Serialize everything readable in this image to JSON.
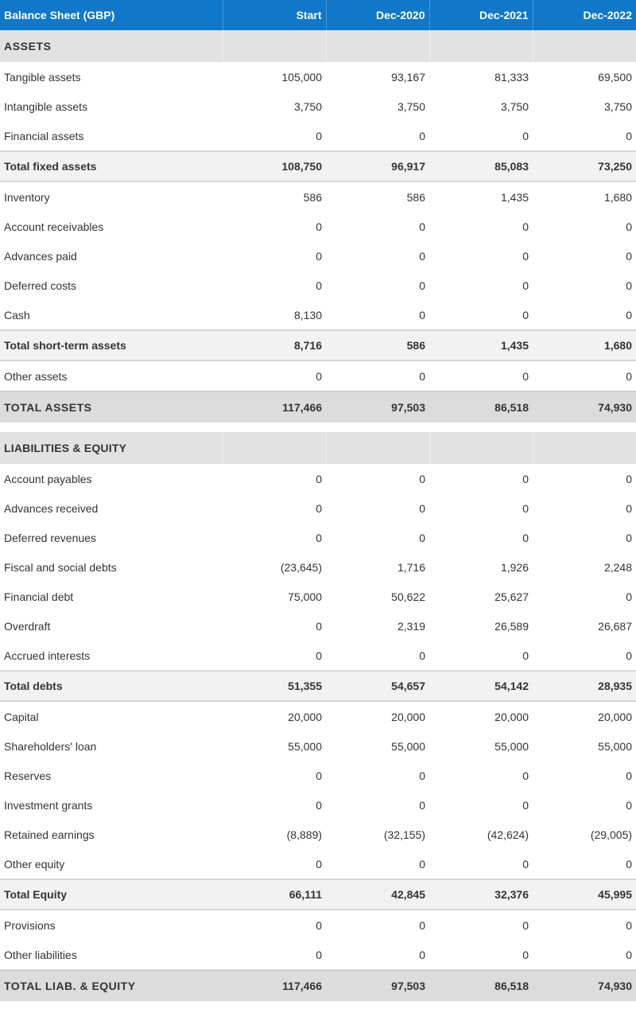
{
  "header": {
    "title": "Balance Sheet (GBP)",
    "columns": [
      "Start",
      "Dec-2020",
      "Dec-2021",
      "Dec-2022"
    ]
  },
  "assets": {
    "label": "ASSETS",
    "rows": [
      {
        "label": "Tangible assets",
        "values": [
          "105,000",
          "93,167",
          "81,333",
          "69,500"
        ]
      },
      {
        "label": "Intangible assets",
        "values": [
          "3,750",
          "3,750",
          "3,750",
          "3,750"
        ]
      },
      {
        "label": "Financial assets",
        "values": [
          "0",
          "0",
          "0",
          "0"
        ]
      },
      {
        "label": "Total fixed assets",
        "values": [
          "108,750",
          "96,917",
          "85,083",
          "73,250"
        ]
      },
      {
        "label": "Inventory",
        "values": [
          "586",
          "586",
          "1,435",
          "1,680"
        ]
      },
      {
        "label": "Account receivables",
        "values": [
          "0",
          "0",
          "0",
          "0"
        ]
      },
      {
        "label": "Advances paid",
        "values": [
          "0",
          "0",
          "0",
          "0"
        ]
      },
      {
        "label": "Deferred costs",
        "values": [
          "0",
          "0",
          "0",
          "0"
        ]
      },
      {
        "label": "Cash",
        "values": [
          "8,130",
          "0",
          "0",
          "0"
        ]
      },
      {
        "label": "Total short-term assets",
        "values": [
          "8,716",
          "586",
          "1,435",
          "1,680"
        ]
      },
      {
        "label": "Other assets",
        "values": [
          "0",
          "0",
          "0",
          "0"
        ]
      },
      {
        "label": "TOTAL ASSETS",
        "values": [
          "117,466",
          "97,503",
          "86,518",
          "74,930"
        ]
      }
    ]
  },
  "liabilities": {
    "label": "LIABILITIES & EQUITY",
    "rows": [
      {
        "label": "Account payables",
        "values": [
          "0",
          "0",
          "0",
          "0"
        ]
      },
      {
        "label": "Advances received",
        "values": [
          "0",
          "0",
          "0",
          "0"
        ]
      },
      {
        "label": "Deferred revenues",
        "values": [
          "0",
          "0",
          "0",
          "0"
        ]
      },
      {
        "label": "Fiscal and social debts",
        "values": [
          "(23,645)",
          "1,716",
          "1,926",
          "2,248"
        ]
      },
      {
        "label": "Financial debt",
        "values": [
          "75,000",
          "50,622",
          "25,627",
          "0"
        ]
      },
      {
        "label": "Overdraft",
        "values": [
          "0",
          "2,319",
          "26,589",
          "26,687"
        ]
      },
      {
        "label": "Accrued interests",
        "values": [
          "0",
          "0",
          "0",
          "0"
        ]
      },
      {
        "label": "Total debts",
        "values": [
          "51,355",
          "54,657",
          "54,142",
          "28,935"
        ]
      },
      {
        "label": "Capital",
        "values": [
          "20,000",
          "20,000",
          "20,000",
          "20,000"
        ]
      },
      {
        "label": "Shareholders' loan",
        "values": [
          "55,000",
          "55,000",
          "55,000",
          "55,000"
        ]
      },
      {
        "label": "Reserves",
        "values": [
          "0",
          "0",
          "0",
          "0"
        ]
      },
      {
        "label": "Investment grants",
        "values": [
          "0",
          "0",
          "0",
          "0"
        ]
      },
      {
        "label": "Retained earnings",
        "values": [
          "(8,889)",
          "(32,155)",
          "(42,624)",
          "(29,005)"
        ]
      },
      {
        "label": "Other equity",
        "values": [
          "0",
          "0",
          "0",
          "0"
        ]
      },
      {
        "label": "Total Equity",
        "values": [
          "66,111",
          "42,845",
          "32,376",
          "45,995"
        ]
      },
      {
        "label": "Provisions",
        "values": [
          "0",
          "0",
          "0",
          "0"
        ]
      },
      {
        "label": "Other liabilities",
        "values": [
          "0",
          "0",
          "0",
          "0"
        ]
      },
      {
        "label": "TOTAL LIAB. & EQUITY",
        "values": [
          "117,466",
          "97,503",
          "86,518",
          "74,930"
        ]
      }
    ]
  },
  "colors": {
    "header_bg": "#1177c9",
    "section_bg": "#e2e2e2",
    "total_bg": "#f2f2f2",
    "grand_bg": "#dcdcdc"
  }
}
